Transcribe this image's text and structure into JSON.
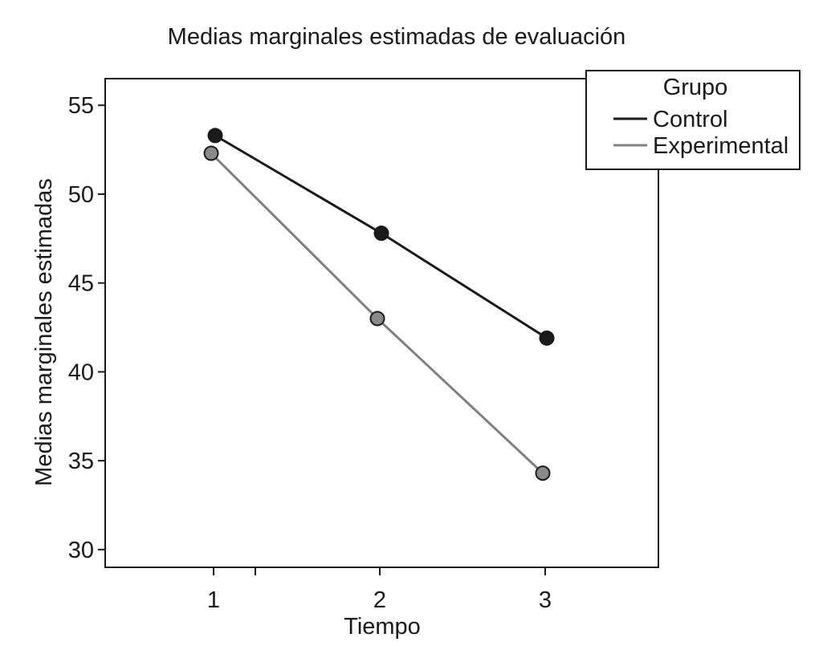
{
  "chart_data": {
    "type": "line",
    "title": "Medias marginales estimadas de evaluación",
    "xlabel": "Tiempo",
    "ylabel": "Medias marginales estimadas",
    "categories": [
      "1",
      "2",
      "3"
    ],
    "y_ticks": [
      "30",
      "35",
      "40",
      "45",
      "50",
      "55"
    ],
    "ylim": [
      29.0,
      56.5
    ],
    "grid": false,
    "legend": {
      "title": "Grupo",
      "placement": "top-right"
    },
    "series": [
      {
        "name": "Control",
        "values": [
          53.3,
          47.8,
          41.9
        ],
        "color": "#1a1a1a"
      },
      {
        "name": "Experimental",
        "values": [
          52.3,
          43.0,
          34.3
        ],
        "color": "#808080"
      }
    ]
  }
}
